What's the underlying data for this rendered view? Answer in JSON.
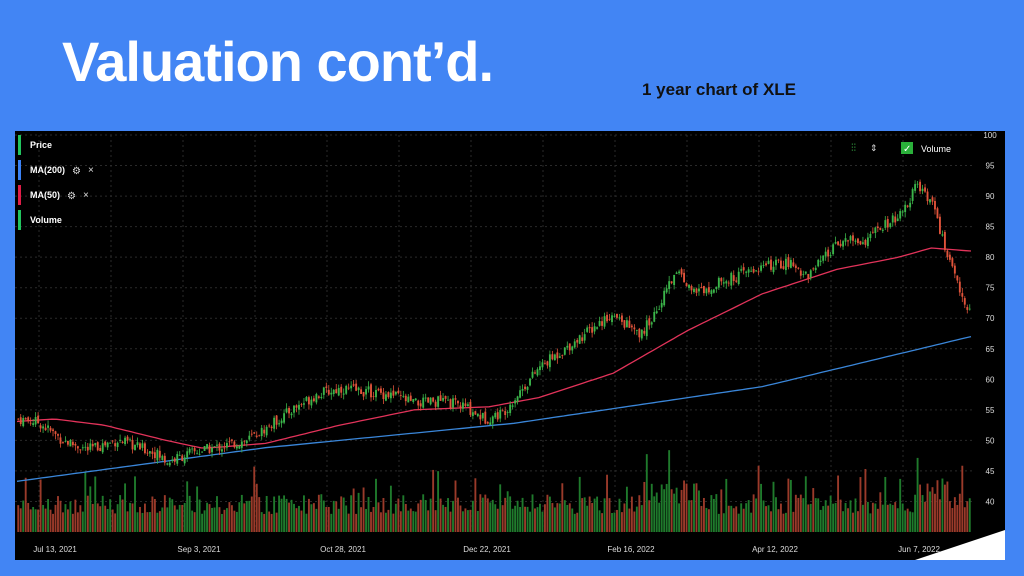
{
  "slide": {
    "title": "Valuation cont’d.",
    "subtitle": "1 year chart of XLE"
  },
  "chart_data": {
    "type": "candlestick",
    "ylim": [
      35,
      100
    ],
    "y_ticks": [
      100,
      95,
      90,
      85,
      80,
      75,
      70,
      65,
      60,
      55,
      50,
      45,
      40
    ],
    "x_tick_labels": [
      "Jul 13, 2021",
      "Sep 3, 2021",
      "Oct 28, 2021",
      "Dec 22, 2021",
      "Feb 16, 2022",
      "Apr 12, 2022",
      "Jun 7, 2022"
    ],
    "grid": true,
    "legend": {
      "placement": "top-left",
      "items": [
        {
          "label": "Price",
          "color": "#22c55e",
          "icon": "settings-icon"
        },
        {
          "label": "MA(200)",
          "color": "#3b82f6",
          "icon": "settings-icon"
        },
        {
          "label": "MA(50)",
          "color": "#e11d48",
          "icon": "settings-icon"
        },
        {
          "label": "Volume",
          "color": "#22c55e"
        }
      ]
    },
    "volume_toggle": {
      "label": "Volume",
      "checked": true
    },
    "colors": {
      "up": "#3bb54a",
      "down": "#e0533a",
      "ma50": "#e2335a",
      "ma200": "#3a86d9",
      "vol_up": "#1f7a2c",
      "vol_down": "#9a3a2a"
    },
    "price_keypoints": [
      [
        0,
        53.5
      ],
      [
        8,
        53
      ],
      [
        18,
        50
      ],
      [
        28,
        48.5
      ],
      [
        40,
        50
      ],
      [
        55,
        48
      ],
      [
        60,
        46.5
      ],
      [
        70,
        48
      ],
      [
        82,
        49
      ],
      [
        92,
        50
      ],
      [
        100,
        52
      ],
      [
        110,
        55
      ],
      [
        120,
        57.5
      ],
      [
        130,
        58.5
      ],
      [
        140,
        58
      ],
      [
        150,
        57.5
      ],
      [
        160,
        56
      ],
      [
        170,
        56.5
      ],
      [
        180,
        55.5
      ],
      [
        188,
        53.5
      ],
      [
        195,
        54.5
      ],
      [
        200,
        57
      ],
      [
        210,
        62
      ],
      [
        220,
        65
      ],
      [
        230,
        68
      ],
      [
        238,
        70.5
      ],
      [
        245,
        69
      ],
      [
        250,
        67
      ],
      [
        258,
        72
      ],
      [
        265,
        78
      ],
      [
        272,
        74
      ],
      [
        280,
        75.5
      ],
      [
        290,
        77
      ],
      [
        300,
        78.5
      ],
      [
        310,
        79
      ],
      [
        318,
        77
      ],
      [
        325,
        80
      ],
      [
        332,
        83
      ],
      [
        340,
        82.5
      ],
      [
        348,
        85
      ],
      [
        356,
        87
      ],
      [
        362,
        92
      ],
      [
        368,
        89
      ],
      [
        372,
        83
      ],
      [
        376,
        78
      ],
      [
        380,
        73
      ],
      [
        384,
        71
      ]
    ],
    "ma200_keypoints": [
      [
        0,
        43.3
      ],
      [
        100,
        48.8
      ],
      [
        200,
        52.8
      ],
      [
        300,
        58.8
      ],
      [
        384,
        67
      ]
    ],
    "ma50_keypoints": [
      [
        0,
        53.1
      ],
      [
        15,
        53.5
      ],
      [
        35,
        52.5
      ],
      [
        60,
        50
      ],
      [
        75,
        48.7
      ],
      [
        100,
        49.5
      ],
      [
        130,
        52.5
      ],
      [
        160,
        55
      ],
      [
        190,
        55.5
      ],
      [
        210,
        57
      ],
      [
        240,
        61
      ],
      [
        270,
        68
      ],
      [
        300,
        74
      ],
      [
        330,
        78
      ],
      [
        355,
        80
      ],
      [
        368,
        81.5
      ],
      [
        384,
        81
      ]
    ]
  }
}
